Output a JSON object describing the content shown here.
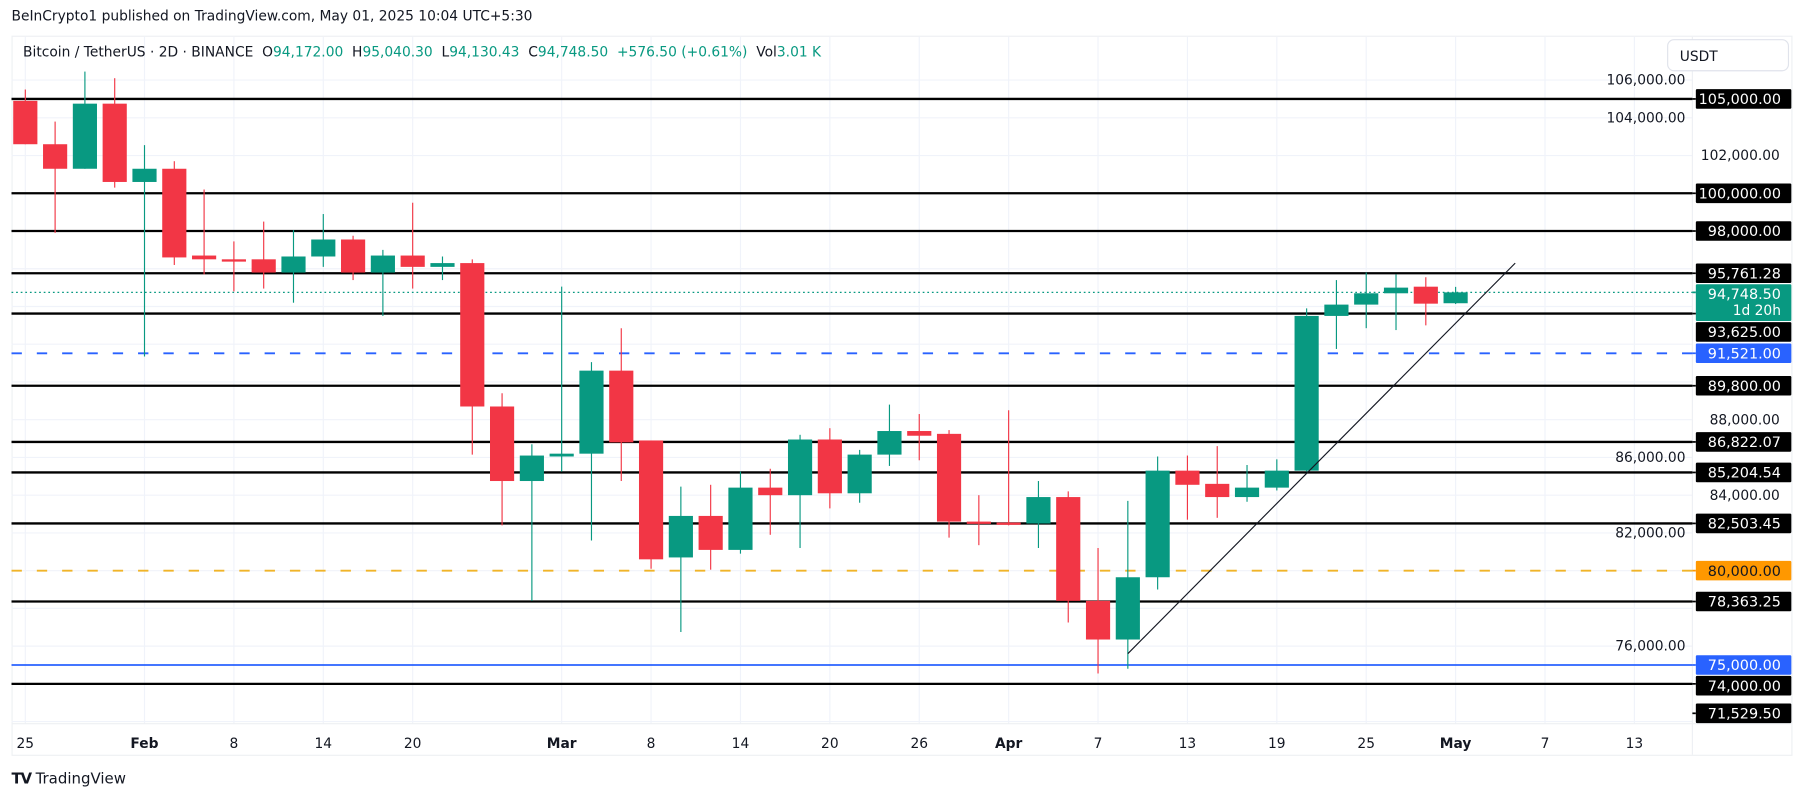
{
  "published": "BeInCrypto1 published on TradingView.com, May 01, 2025 10:04 UTC+5:30",
  "legend": {
    "symbol": "Bitcoin / TetherUS · 2D · BINANCE",
    "o_label": "O",
    "o": "94,172.00",
    "h_label": "H",
    "h": "95,040.30",
    "l_label": "L",
    "l": "94,130.43",
    "c_label": "C",
    "c": "94,748.50",
    "change": "+576.50 (+0.61%)",
    "vol_label": "Vol",
    "vol": "3.01 K"
  },
  "currency_button": "USDT",
  "footer": {
    "logo_mark": "TV",
    "brand": "TradingView"
  },
  "colors": {
    "up": "#089981",
    "down": "#f23645",
    "level": "#000000",
    "blue": "#2962ff",
    "orange": "#ff9800",
    "orange_line": "#f0b429"
  },
  "chart_data": {
    "type": "candlestick",
    "symbol": "Bitcoin / TetherUS",
    "interval": "2D",
    "ylim": [
      71000,
      107000
    ],
    "grid": true,
    "y_ticks": [
      "76,000.00",
      "82,000.00",
      "84,000.00",
      "86,000.00",
      "88,000.00",
      "102,000.00",
      "104,000.00",
      "106,000.00"
    ],
    "y_tick_values": [
      76000,
      82000,
      84000,
      86000,
      88000,
      102000,
      104000,
      106000
    ],
    "x_ticks": [
      {
        "date": "2025-01-25",
        "label": "25",
        "bold": false
      },
      {
        "date": "2025-02-01",
        "label": "Feb",
        "bold": true
      },
      {
        "date": "2025-02-08",
        "label": "8",
        "bold": false
      },
      {
        "date": "2025-02-14",
        "label": "14",
        "bold": false
      },
      {
        "date": "2025-02-20",
        "label": "20",
        "bold": false
      },
      {
        "date": "2025-03-01",
        "label": "Mar",
        "bold": true
      },
      {
        "date": "2025-03-08",
        "label": "8",
        "bold": false
      },
      {
        "date": "2025-03-14",
        "label": "14",
        "bold": false
      },
      {
        "date": "2025-03-20",
        "label": "20",
        "bold": false
      },
      {
        "date": "2025-03-26",
        "label": "26",
        "bold": false
      },
      {
        "date": "2025-04-01",
        "label": "Apr",
        "bold": true
      },
      {
        "date": "2025-04-07",
        "label": "7",
        "bold": false
      },
      {
        "date": "2025-04-13",
        "label": "13",
        "bold": false
      },
      {
        "date": "2025-04-19",
        "label": "19",
        "bold": false
      },
      {
        "date": "2025-04-25",
        "label": "25",
        "bold": false
      },
      {
        "date": "2025-05-01",
        "label": "May",
        "bold": true
      },
      {
        "date": "2025-05-07",
        "label": "7",
        "bold": false
      },
      {
        "date": "2025-05-13",
        "label": "13",
        "bold": false
      }
    ],
    "candles": [
      {
        "date": "2025-01-24",
        "o": 104900,
        "h": 105500,
        "l": 102600,
        "c": 102600
      },
      {
        "date": "2025-01-26",
        "o": 102600,
        "h": 103800,
        "l": 97900,
        "c": 101300
      },
      {
        "date": "2025-01-28",
        "o": 101300,
        "h": 106450,
        "l": 101300,
        "c": 104750
      },
      {
        "date": "2025-01-30",
        "o": 104750,
        "h": 106100,
        "l": 100300,
        "c": 100600
      },
      {
        "date": "2025-02-01",
        "o": 100600,
        "h": 102550,
        "l": 91350,
        "c": 101300
      },
      {
        "date": "2025-02-03",
        "o": 101300,
        "h": 101700,
        "l": 96200,
        "c": 96600
      },
      {
        "date": "2025-02-05",
        "o": 96700,
        "h": 100200,
        "l": 95700,
        "c": 96500
      },
      {
        "date": "2025-02-07",
        "o": 96500,
        "h": 97450,
        "l": 94800,
        "c": 96420
      },
      {
        "date": "2025-02-09",
        "o": 96500,
        "h": 98500,
        "l": 94950,
        "c": 95800
      },
      {
        "date": "2025-02-11",
        "o": 95800,
        "h": 98050,
        "l": 94200,
        "c": 96650
      },
      {
        "date": "2025-02-13",
        "o": 96650,
        "h": 98900,
        "l": 96100,
        "c": 97550
      },
      {
        "date": "2025-02-15",
        "o": 97550,
        "h": 97750,
        "l": 95400,
        "c": 95800
      },
      {
        "date": "2025-02-17",
        "o": 95800,
        "h": 97000,
        "l": 93500,
        "c": 96700
      },
      {
        "date": "2025-02-19",
        "o": 96700,
        "h": 99500,
        "l": 94950,
        "c": 96100
      },
      {
        "date": "2025-02-21",
        "o": 96100,
        "h": 96650,
        "l": 95400,
        "c": 96300
      },
      {
        "date": "2025-02-23",
        "o": 96300,
        "h": 96500,
        "l": 86150,
        "c": 88700
      },
      {
        "date": "2025-02-25",
        "o": 88700,
        "h": 89400,
        "l": 82400,
        "c": 84750
      },
      {
        "date": "2025-02-27",
        "o": 84750,
        "h": 86700,
        "l": 78400,
        "c": 86100
      },
      {
        "date": "2025-03-01",
        "o": 86050,
        "h": 95050,
        "l": 85250,
        "c": 86200
      },
      {
        "date": "2025-03-03",
        "o": 86200,
        "h": 91050,
        "l": 81600,
        "c": 90600
      },
      {
        "date": "2025-03-05",
        "o": 90600,
        "h": 92850,
        "l": 84750,
        "c": 86800
      },
      {
        "date": "2025-03-07",
        "o": 86900,
        "h": 86900,
        "l": 80100,
        "c": 80600
      },
      {
        "date": "2025-03-09",
        "o": 80700,
        "h": 84450,
        "l": 76750,
        "c": 82900
      },
      {
        "date": "2025-03-11",
        "o": 82900,
        "h": 84550,
        "l": 80050,
        "c": 81100
      },
      {
        "date": "2025-03-13",
        "o": 81100,
        "h": 85250,
        "l": 80900,
        "c": 84400
      },
      {
        "date": "2025-03-15",
        "o": 84400,
        "h": 85400,
        "l": 81900,
        "c": 84000
      },
      {
        "date": "2025-03-17",
        "o": 84000,
        "h": 87200,
        "l": 81200,
        "c": 86950
      },
      {
        "date": "2025-03-19",
        "o": 86950,
        "h": 87550,
        "l": 83300,
        "c": 84100
      },
      {
        "date": "2025-03-21",
        "o": 84100,
        "h": 86400,
        "l": 83600,
        "c": 86150
      },
      {
        "date": "2025-03-23",
        "o": 86150,
        "h": 88800,
        "l": 85550,
        "c": 87400
      },
      {
        "date": "2025-03-25",
        "o": 87400,
        "h": 88300,
        "l": 85850,
        "c": 87150
      },
      {
        "date": "2025-03-27",
        "o": 87250,
        "h": 87450,
        "l": 81750,
        "c": 82600
      },
      {
        "date": "2025-03-29",
        "o": 82600,
        "h": 84000,
        "l": 81350,
        "c": 82550
      },
      {
        "date": "2025-03-31",
        "o": 82550,
        "h": 88500,
        "l": 82400,
        "c": 82500
      },
      {
        "date": "2025-04-02",
        "o": 82500,
        "h": 84750,
        "l": 81200,
        "c": 83900
      },
      {
        "date": "2025-04-04",
        "o": 83900,
        "h": 84200,
        "l": 77250,
        "c": 78400
      },
      {
        "date": "2025-04-06",
        "o": 78400,
        "h": 81200,
        "l": 74550,
        "c": 76350
      },
      {
        "date": "2025-04-08",
        "o": 76350,
        "h": 83700,
        "l": 74800,
        "c": 79650
      },
      {
        "date": "2025-04-10",
        "o": 79650,
        "h": 86050,
        "l": 79000,
        "c": 85300
      },
      {
        "date": "2025-04-12",
        "o": 85300,
        "h": 86100,
        "l": 82700,
        "c": 84550
      },
      {
        "date": "2025-04-14",
        "o": 84600,
        "h": 86600,
        "l": 82800,
        "c": 83900
      },
      {
        "date": "2025-04-16",
        "o": 83900,
        "h": 85600,
        "l": 83650,
        "c": 84400
      },
      {
        "date": "2025-04-18",
        "o": 84400,
        "h": 85900,
        "l": 84250,
        "c": 85300
      },
      {
        "date": "2025-04-20",
        "o": 85300,
        "h": 93900,
        "l": 85250,
        "c": 93500
      },
      {
        "date": "2025-04-22",
        "o": 93500,
        "h": 95400,
        "l": 91750,
        "c": 94100
      },
      {
        "date": "2025-04-24",
        "o": 94100,
        "h": 95800,
        "l": 92850,
        "c": 94700
      },
      {
        "date": "2025-04-26",
        "o": 94700,
        "h": 95700,
        "l": 92750,
        "c": 95000
      },
      {
        "date": "2025-04-28",
        "o": 95050,
        "h": 95550,
        "l": 93000,
        "c": 94150
      },
      {
        "date": "2025-04-30",
        "o": 94172.0,
        "h": 95040.3,
        "l": 94130.43,
        "c": 94748.5
      }
    ],
    "levels": [
      {
        "price": 105000,
        "label": "105,000.00",
        "style": "solid",
        "color": "#000000"
      },
      {
        "price": 100000,
        "label": "100,000.00",
        "style": "solid",
        "color": "#000000"
      },
      {
        "price": 98000,
        "label": "98,000.00",
        "style": "solid",
        "color": "#000000"
      },
      {
        "price": 95761.28,
        "label": "95,761.28",
        "style": "solid",
        "color": "#000000"
      },
      {
        "price": 93625,
        "label": "93,625.00",
        "style": "solid",
        "color": "#000000"
      },
      {
        "price": 91521,
        "label": "91,521.00",
        "style": "dashed",
        "color": "#2962ff"
      },
      {
        "price": 89800,
        "label": "89,800.00",
        "style": "solid",
        "color": "#000000"
      },
      {
        "price": 86822.07,
        "label": "86,822.07",
        "style": "solid",
        "color": "#000000"
      },
      {
        "price": 85204.54,
        "label": "85,204.54",
        "style": "solid",
        "color": "#000000"
      },
      {
        "price": 82503.45,
        "label": "82,503.45",
        "style": "solid",
        "color": "#000000"
      },
      {
        "price": 80000,
        "label": "80,000.00",
        "style": "dashed",
        "color": "#ff9800"
      },
      {
        "price": 78363.25,
        "label": "78,363.25",
        "style": "solid",
        "color": "#000000"
      },
      {
        "price": 75000,
        "label": "75,000.00",
        "style": "solid",
        "color": "#2962ff"
      },
      {
        "price": 74000,
        "label": "74,000.00",
        "style": "solid",
        "color": "#000000"
      },
      {
        "price": 71529.5,
        "label": "71,529.50",
        "style": "solid",
        "color": "#000000"
      }
    ],
    "current_price": {
      "price": 94748.5,
      "label": "94,748.50",
      "countdown": "1d 20h"
    },
    "trendline": [
      {
        "date": "2025-04-08",
        "price": 75600
      },
      {
        "date": "2025-05-04",
        "price": 96300
      }
    ]
  }
}
